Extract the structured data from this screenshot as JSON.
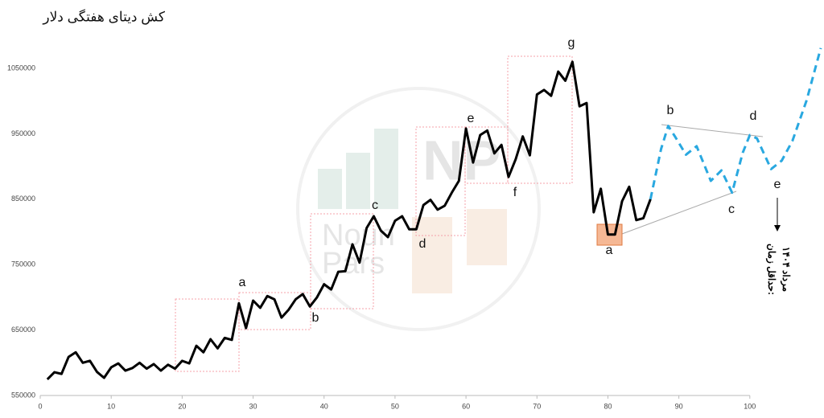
{
  "chart_data": {
    "type": "line",
    "title": "کش دیتای هفتگی دلار",
    "xlim": [
      0,
      110
    ],
    "ylim": [
      550000,
      1150000
    ],
    "xticks": [
      0,
      10,
      20,
      30,
      40,
      50,
      60,
      70,
      80,
      90,
      100
    ],
    "yticks": [
      550000,
      650000,
      750000,
      850000,
      950000,
      1050000
    ],
    "grid": false,
    "series": [
      {
        "color": "#000000",
        "dashed": false,
        "x": [
          1,
          2,
          3,
          4,
          5,
          6,
          7,
          8,
          9,
          10,
          11,
          12,
          13,
          14,
          15,
          16,
          17,
          18,
          19,
          20,
          21,
          22,
          23,
          24,
          25,
          26,
          27,
          28,
          29,
          30,
          31,
          32,
          33,
          34,
          35,
          36,
          37,
          38,
          39,
          40,
          41,
          42,
          43,
          44,
          45,
          46,
          47,
          48,
          49,
          50,
          51,
          52,
          53,
          54,
          55,
          56,
          57,
          58,
          59,
          60,
          61,
          62,
          63,
          64,
          65,
          66,
          67,
          68,
          69,
          70,
          71,
          72,
          73,
          74,
          75,
          76,
          77,
          78,
          79,
          80,
          81,
          82,
          83,
          84,
          85,
          86
        ],
        "values": [
          574600,
          585600,
          583000,
          609000,
          616000,
          600000,
          603000,
          586000,
          577000,
          593000,
          599000,
          588000,
          592000,
          600000,
          591000,
          598000,
          588000,
          597000,
          591000,
          603000,
          599000,
          626000,
          616000,
          636000,
          622000,
          638000,
          635000,
          691000,
          653000,
          695000,
          684000,
          702000,
          697000,
          669000,
          681000,
          697000,
          705000,
          686000,
          700000,
          720000,
          712000,
          739000,
          740000,
          781000,
          753000,
          806000,
          824000,
          802000,
          792000,
          817000,
          824000,
          804000,
          804000,
          841000,
          849000,
          834000,
          840000,
          860000,
          878000,
          958000,
          906000,
          948000,
          955000,
          920000,
          933000,
          884000,
          911000,
          946000,
          917000,
          1010000,
          1017000,
          1008000,
          1045000,
          1031000,
          1060000,
          992000,
          997000,
          830000,
          866000,
          796000,
          796000,
          847000,
          869000,
          818000,
          821000,
          850000
        ]
      },
      {
        "color": "#29a8e0",
        "dashed": true,
        "x": [
          86,
          87.5,
          88.5,
          89.5,
          91,
          92.5,
          94.5,
          96,
          97.5,
          99,
          100,
          101,
          103,
          104.5,
          106,
          108,
          110
        ],
        "values": [
          850000,
          927000,
          962000,
          945000,
          918000,
          931000,
          878000,
          894000,
          860000,
          921000,
          948000,
          943000,
          896000,
          909000,
          939000,
          1001000,
          1081000
        ]
      }
    ],
    "annotations": [
      "a",
      "b",
      "c",
      "d",
      "e",
      "f",
      "g",
      "a",
      "b",
      "c",
      "d",
      "e"
    ],
    "note": [
      "حداقل زمان:",
      "مرداد ۱۴۰۴"
    ],
    "watermark": [
      "NP",
      "Noun",
      "Pars"
    ]
  }
}
